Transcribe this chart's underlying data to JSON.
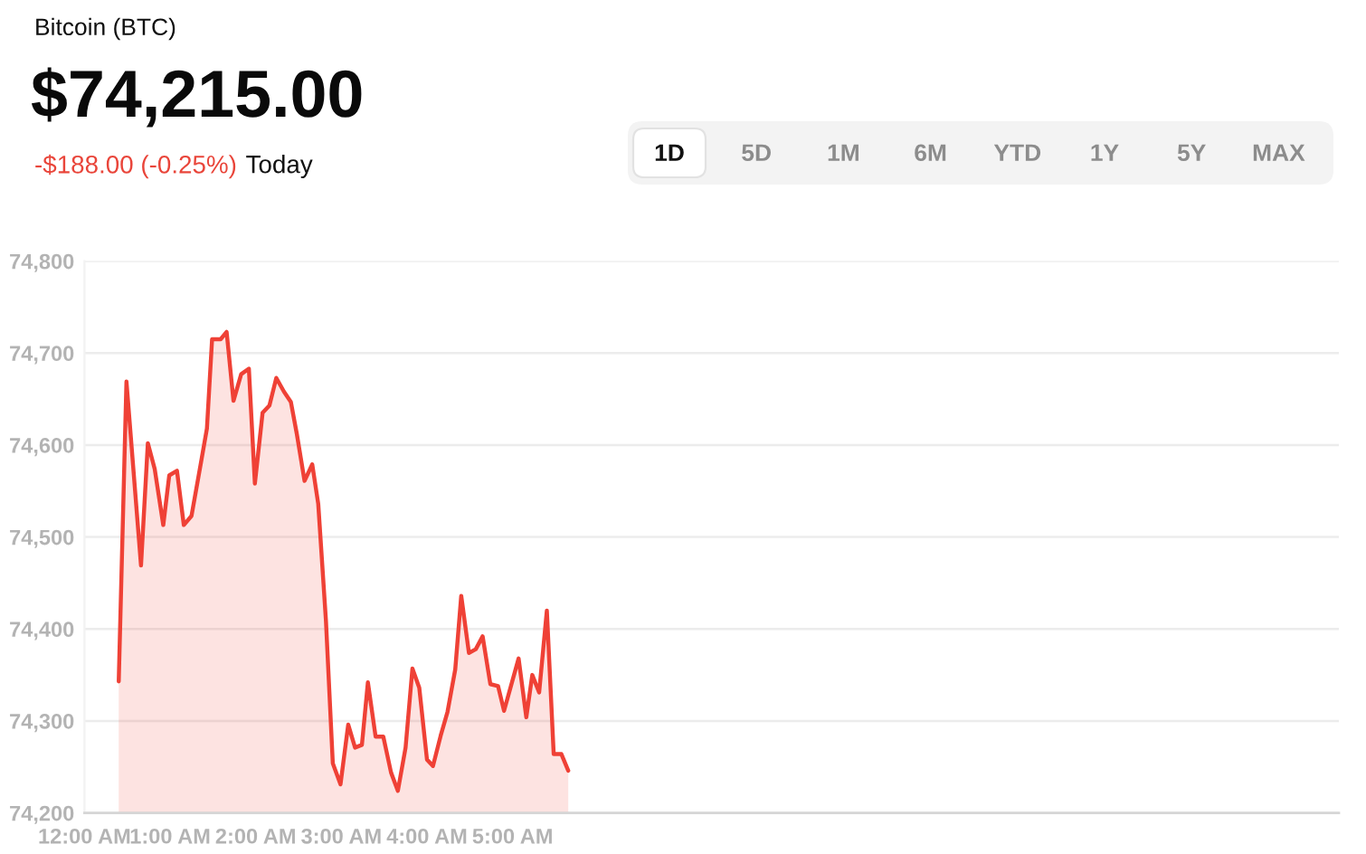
{
  "chart_data": {
    "type": "area",
    "title": "Bitcoin (BTC)",
    "subtitle": "$74,215.00",
    "annotations": [
      "-$188.00 (-0.25%)",
      "Today",
      "1D",
      "5D",
      "1M",
      "6M",
      "YTD",
      "1Y",
      "5Y",
      "MAX"
    ],
    "x": [
      0.4,
      0.49,
      0.66,
      0.74,
      0.82,
      0.92,
      0.99,
      1.08,
      1.16,
      1.25,
      1.37,
      1.43,
      1.49,
      1.59,
      1.66,
      1.74,
      1.83,
      1.92,
      1.99,
      2.08,
      2.16,
      2.24,
      2.33,
      2.41,
      2.48,
      2.57,
      2.66,
      2.73,
      2.82,
      2.9,
      2.99,
      3.08,
      3.16,
      3.24,
      3.31,
      3.4,
      3.49,
      3.58,
      3.66,
      3.75,
      3.83,
      3.91,
      4.0,
      4.07,
      4.16,
      4.24,
      4.33,
      4.4,
      4.49,
      4.57,
      4.65,
      4.74,
      4.83,
      4.9,
      5.07,
      5.16,
      5.23,
      5.31,
      5.4,
      5.48,
      5.57,
      5.65
    ],
    "series": [
      {
        "color": "#ef4136",
        "values": [
          74343,
          74669,
          74469,
          74602,
          74574,
          74513,
          74567,
          74572,
          74513,
          74523,
          74586,
          74618,
          74715,
          74715,
          74723,
          74648,
          74677,
          74683,
          74558,
          74635,
          74643,
          74673,
          74658,
          74647,
          74612,
          74561,
          74579,
          74536,
          74409,
          74254,
          74231,
          74296,
          74271,
          74274,
          74342,
          74283,
          74283,
          74244,
          74224,
          74271,
          74357,
          74336,
          74258,
          74251,
          74284,
          74310,
          74356,
          74436,
          74374,
          74378,
          74392,
          74340,
          74338,
          74311,
          74368,
          74304,
          74350,
          74331,
          74420,
          74264,
          74264,
          74246
        ]
      }
    ],
    "xlim": [
      0,
      14.65
    ],
    "xticks": [
      {
        "value": 0,
        "label": "12:00 AM"
      },
      {
        "value": 1,
        "label": "1:00 AM"
      },
      {
        "value": 2,
        "label": "2:00 AM"
      },
      {
        "value": 3,
        "label": "3:00 AM"
      },
      {
        "value": 4,
        "label": "4:00 AM"
      },
      {
        "value": 5,
        "label": "5:00 AM"
      }
    ],
    "ylim": [
      74200,
      74800
    ],
    "yticks": [
      {
        "value": 74200,
        "label": "74,200"
      },
      {
        "value": 74300,
        "label": "74,300"
      },
      {
        "value": 74400,
        "label": "74,400"
      },
      {
        "value": 74500,
        "label": "74,500"
      },
      {
        "value": 74600,
        "label": "74,600"
      },
      {
        "value": 74700,
        "label": "74,700"
      },
      {
        "value": 74800,
        "label": "74,800"
      }
    ],
    "grid": "y"
  }
}
